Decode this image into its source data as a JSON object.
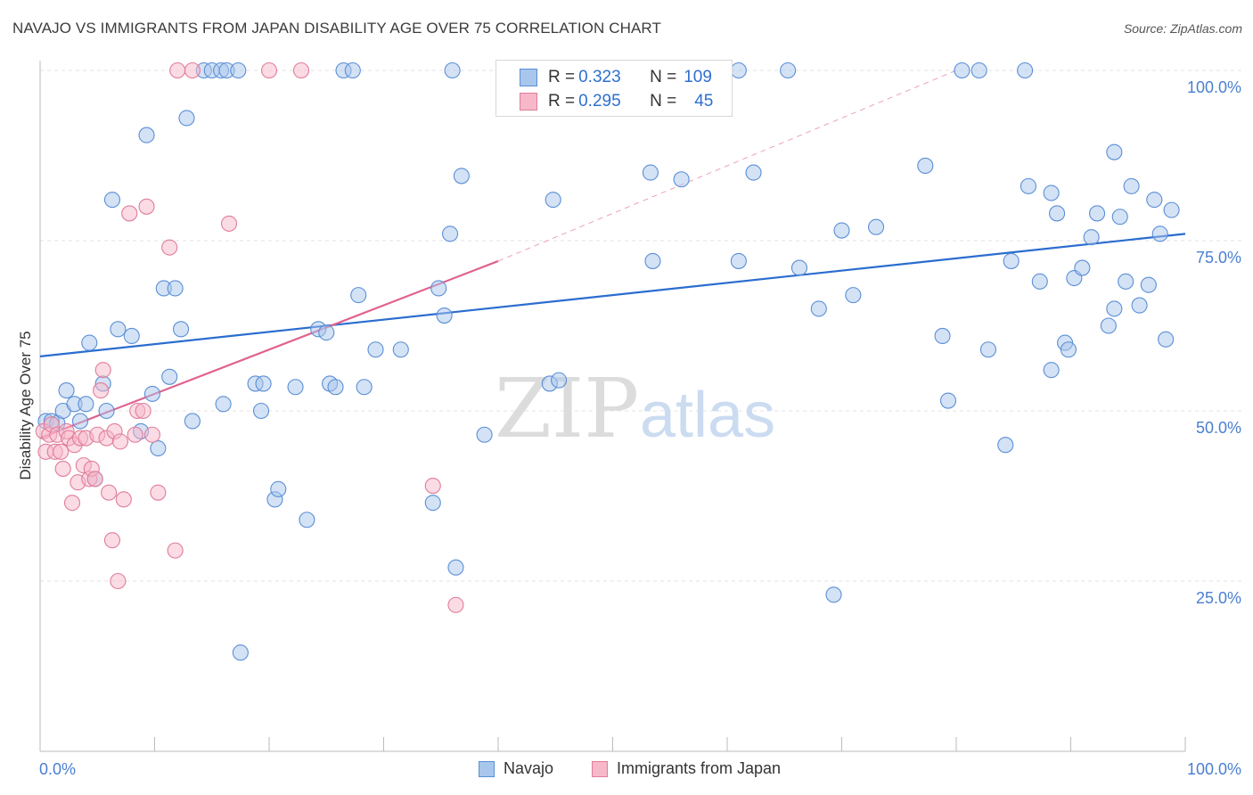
{
  "title": "NAVAJO VS IMMIGRANTS FROM JAPAN DISABILITY AGE OVER 75 CORRELATION CHART",
  "source": "Source: ZipAtlas.com",
  "watermark": {
    "zip": "ZIP",
    "atlas": "atlas"
  },
  "colors": {
    "navajo_fill": "#a9c6ec",
    "navajo_stroke": "#5a8fd6",
    "navajo_line": "#2a6dcf",
    "japan_fill": "#f7b8ca",
    "japan_stroke": "#e07d9b",
    "japan_line": "#e0628f",
    "axis_text": "#4a7fd0",
    "grid": "#e3e3e3"
  },
  "stats": {
    "navajo": {
      "r_label": "R = ",
      "r": "0.323",
      "n_label": "N = ",
      "n": "109"
    },
    "japan": {
      "r_label": "R = ",
      "r": "0.295",
      "n_label": "N = ",
      "n": "45"
    }
  },
  "legend": {
    "navajo": "Navajo",
    "japan": "Immigrants from Japan"
  },
  "chart_data": {
    "type": "scatter",
    "title": "NAVAJO VS IMMIGRANTS FROM JAPAN DISABILITY AGE OVER 75 CORRELATION CHART",
    "xlabel": "",
    "ylabel": "Disability Age Over 75",
    "xlim": [
      0,
      100
    ],
    "ylim": [
      0,
      100
    ],
    "x_tick_labels": [
      "0.0%",
      "100.0%"
    ],
    "y_tick_labels": [
      "25.0%",
      "50.0%",
      "75.0%",
      "100.0%"
    ],
    "y_ticks": [
      25,
      50,
      75,
      100
    ],
    "grid": "horizontal dashed",
    "legend_position": "bottom-center",
    "series": [
      {
        "name": "Navajo",
        "points": [
          [
            0.5,
            48.5
          ],
          [
            1.0,
            48.5
          ],
          [
            1.5,
            48.2
          ],
          [
            2.0,
            50.0
          ],
          [
            2.3,
            53.0
          ],
          [
            3.0,
            51.0
          ],
          [
            3.5,
            48.5
          ],
          [
            4.0,
            51.0
          ],
          [
            4.3,
            60.0
          ],
          [
            4.8,
            40.0
          ],
          [
            5.5,
            54.0
          ],
          [
            5.8,
            50.0
          ],
          [
            6.3,
            81.0
          ],
          [
            6.8,
            62.0
          ],
          [
            8.0,
            61.0
          ],
          [
            8.8,
            47.0
          ],
          [
            9.3,
            90.5
          ],
          [
            9.8,
            52.5
          ],
          [
            10.3,
            44.5
          ],
          [
            10.8,
            68.0
          ],
          [
            11.3,
            55.0
          ],
          [
            11.8,
            68.0
          ],
          [
            12.3,
            62.0
          ],
          [
            12.8,
            93.0
          ],
          [
            13.3,
            48.5
          ],
          [
            14.3,
            100.0
          ],
          [
            15.0,
            100.0
          ],
          [
            15.8,
            100.0
          ],
          [
            16.3,
            100.0
          ],
          [
            17.3,
            100.0
          ],
          [
            16.0,
            51.0
          ],
          [
            17.5,
            14.5
          ],
          [
            18.8,
            54.0
          ],
          [
            19.5,
            54.0
          ],
          [
            19.3,
            50.0
          ],
          [
            20.5,
            37.0
          ],
          [
            20.8,
            38.5
          ],
          [
            22.3,
            53.5
          ],
          [
            23.3,
            34.0
          ],
          [
            24.3,
            62.0
          ],
          [
            25.0,
            61.5
          ],
          [
            25.3,
            54.0
          ],
          [
            25.8,
            53.5
          ],
          [
            26.5,
            100.0
          ],
          [
            27.3,
            100.0
          ],
          [
            27.8,
            67.0
          ],
          [
            28.3,
            53.5
          ],
          [
            29.3,
            59.0
          ],
          [
            31.5,
            59.0
          ],
          [
            34.3,
            36.5
          ],
          [
            34.8,
            68.0
          ],
          [
            35.3,
            64.0
          ],
          [
            36.0,
            100.0
          ],
          [
            35.8,
            76.0
          ],
          [
            36.3,
            27.0
          ],
          [
            36.8,
            84.5
          ],
          [
            38.8,
            46.5
          ],
          [
            40.8,
            100.0
          ],
          [
            44.5,
            54.0
          ],
          [
            44.8,
            81.0
          ],
          [
            45.3,
            54.5
          ],
          [
            48.3,
            100.0
          ],
          [
            49.3,
            100.0
          ],
          [
            53.3,
            85.0
          ],
          [
            53.5,
            72.0
          ],
          [
            56.0,
            84.0
          ],
          [
            58.5,
            100.0
          ],
          [
            61.0,
            100.0
          ],
          [
            61.0,
            72.0
          ],
          [
            62.3,
            85.0
          ],
          [
            65.3,
            100.0
          ],
          [
            66.3,
            71.0
          ],
          [
            68.0,
            65.0
          ],
          [
            69.3,
            23.0
          ],
          [
            70.0,
            76.5
          ],
          [
            71.0,
            67.0
          ],
          [
            73.0,
            77.0
          ],
          [
            77.3,
            86.0
          ],
          [
            78.8,
            61.0
          ],
          [
            79.3,
            51.5
          ],
          [
            80.5,
            100.0
          ],
          [
            82.0,
            100.0
          ],
          [
            82.8,
            59.0
          ],
          [
            84.3,
            45.0
          ],
          [
            84.8,
            72.0
          ],
          [
            86.0,
            100.0
          ],
          [
            86.3,
            83.0
          ],
          [
            87.3,
            69.0
          ],
          [
            88.3,
            82.0
          ],
          [
            88.3,
            56.0
          ],
          [
            88.8,
            79.0
          ],
          [
            89.5,
            60.0
          ],
          [
            89.8,
            59.0
          ],
          [
            90.3,
            69.5
          ],
          [
            91.0,
            71.0
          ],
          [
            91.8,
            75.5
          ],
          [
            92.3,
            79.0
          ],
          [
            93.3,
            62.5
          ],
          [
            93.8,
            88.0
          ],
          [
            93.8,
            65.0
          ],
          [
            94.3,
            78.5
          ],
          [
            94.8,
            69.0
          ],
          [
            95.3,
            83.0
          ],
          [
            96.0,
            65.5
          ],
          [
            96.8,
            68.5
          ],
          [
            97.3,
            81.0
          ],
          [
            97.8,
            76.0
          ],
          [
            98.3,
            60.5
          ],
          [
            98.8,
            79.5
          ]
        ]
      },
      {
        "name": "Immigrants from Japan",
        "points": [
          [
            0.3,
            47.0
          ],
          [
            0.5,
            44.0
          ],
          [
            0.8,
            46.5
          ],
          [
            1.0,
            48.0
          ],
          [
            1.3,
            44.0
          ],
          [
            1.5,
            46.5
          ],
          [
            1.8,
            44.0
          ],
          [
            2.0,
            41.5
          ],
          [
            2.3,
            47.0
          ],
          [
            2.5,
            46.0
          ],
          [
            2.8,
            36.5
          ],
          [
            3.0,
            45.0
          ],
          [
            3.3,
            39.5
          ],
          [
            3.5,
            46.0
          ],
          [
            3.8,
            42.0
          ],
          [
            4.0,
            46.0
          ],
          [
            4.3,
            40.0
          ],
          [
            4.5,
            41.5
          ],
          [
            4.8,
            40.0
          ],
          [
            5.0,
            46.5
          ],
          [
            5.3,
            53.0
          ],
          [
            5.5,
            56.0
          ],
          [
            5.8,
            46.0
          ],
          [
            6.0,
            38.0
          ],
          [
            6.3,
            31.0
          ],
          [
            6.5,
            47.0
          ],
          [
            6.8,
            25.0
          ],
          [
            7.0,
            45.5
          ],
          [
            7.3,
            37.0
          ],
          [
            7.8,
            79.0
          ],
          [
            8.3,
            46.5
          ],
          [
            8.5,
            50.0
          ],
          [
            9.0,
            50.0
          ],
          [
            9.3,
            80.0
          ],
          [
            9.8,
            46.5
          ],
          [
            10.3,
            38.0
          ],
          [
            11.3,
            74.0
          ],
          [
            11.8,
            29.5
          ],
          [
            12.0,
            100.0
          ],
          [
            13.3,
            100.0
          ],
          [
            16.5,
            77.5
          ],
          [
            20.0,
            100.0
          ],
          [
            22.8,
            100.0
          ],
          [
            34.3,
            39.0
          ],
          [
            36.3,
            21.5
          ]
        ]
      }
    ],
    "trendlines": [
      {
        "series": "Navajo",
        "x": [
          0,
          100
        ],
        "y": [
          58.0,
          76.0
        ]
      },
      {
        "series": "Immigrants from Japan",
        "x": [
          0,
          40
        ],
        "y": [
          46.0,
          72.0
        ],
        "dashed_extension_to": [
          80,
          100
        ]
      }
    ]
  }
}
